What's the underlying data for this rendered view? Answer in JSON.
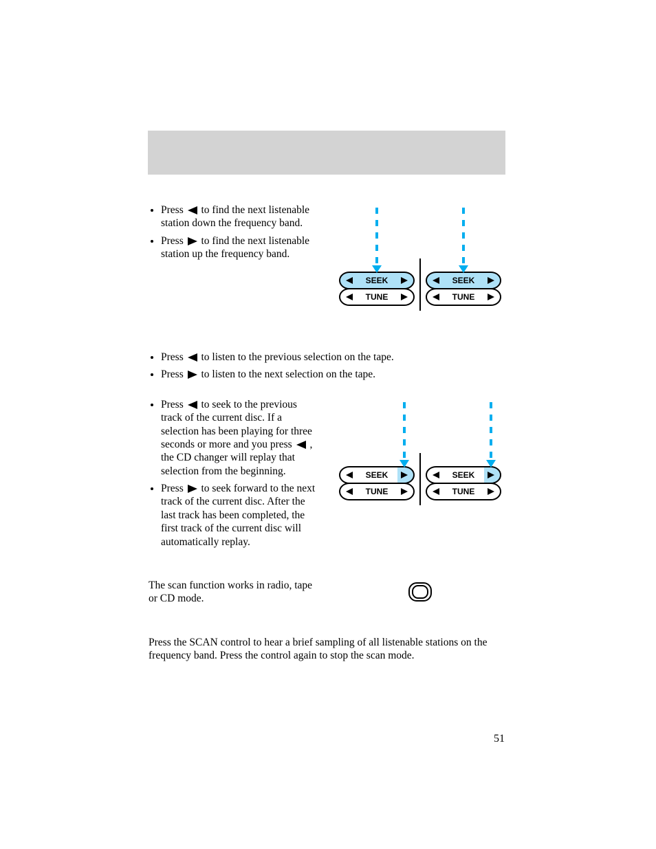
{
  "colors": {
    "header_band": "#d3d3d3",
    "arrow_dash": "#00aeef",
    "highlight_fill": "#aee1f7",
    "black": "#000000",
    "white": "#ffffff"
  },
  "bullets_radio": [
    {
      "dir": "left",
      "text_before": "Press ",
      "text_after": " to find the next listenable station down the frequency band."
    },
    {
      "dir": "right",
      "text_before": "Press ",
      "text_after": " to find the next listenable station up the frequency band."
    }
  ],
  "bullets_tape": [
    {
      "dir": "left",
      "text_before": "Press ",
      "text_after": " to listen to the previous selection on the tape."
    },
    {
      "dir": "right",
      "text_before": "Press ",
      "text_after": " to listen to the next selection on the tape."
    }
  ],
  "bullets_cd": [
    {
      "dir": "left",
      "text_before": "Press ",
      "text_after": " to seek to the previous track of the current disc. If a selection has been playing for three seconds or more and you press ",
      "text_after2": " , the CD changer will replay that selection from the beginning.",
      "has_second_tri": true
    },
    {
      "dir": "right",
      "text_before": "Press ",
      "text_after": " to seek forward to the next track of the current disc. After the last track has been completed, the first track of the current disc will automatically replay."
    }
  ],
  "seek_module": {
    "labels": {
      "seek": "SEEK",
      "tune": "TUNE"
    },
    "variants": [
      {
        "highlight": "seek_row"
      },
      {
        "highlight": "right_tri_only"
      }
    ],
    "font_family": "Helvetica, Arial, sans-serif",
    "label_font_size": 12,
    "label_font_weight": "bold",
    "outer_stroke_width": 2,
    "triangle_size": 10,
    "arrow_dash_pattern": "9 9",
    "arrow_stroke_width": 4
  },
  "scan_text": "The scan function works in radio, tape or CD mode.",
  "scan_paragraph": "Press the SCAN control to hear a brief sampling of all listenable stations on the frequency band. Press the control again to stop the scan mode.",
  "page_number": "51"
}
